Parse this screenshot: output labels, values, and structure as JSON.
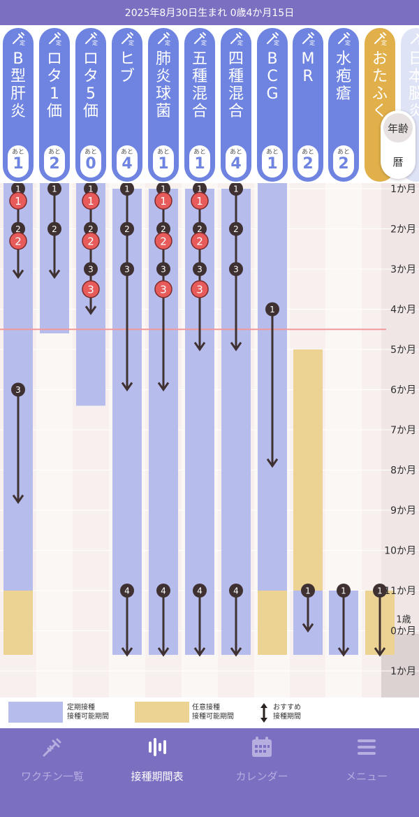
{
  "status_bar": {
    "text": "2025年8月30日生まれ 0歳4か月15日"
  },
  "vaccines": [
    {
      "name": "B型肝炎",
      "remaining_label": "あと",
      "remaining": "1",
      "kind": "regular"
    },
    {
      "name": "ロタ1価",
      "remaining_label": "あと",
      "remaining": "2",
      "kind": "regular"
    },
    {
      "name": "ロタ5価",
      "remaining_label": "あと",
      "remaining": "0",
      "kind": "regular"
    },
    {
      "name": "ヒブ",
      "remaining_label": "あと",
      "remaining": "4",
      "kind": "regular"
    },
    {
      "name": "肺炎球菌",
      "remaining_label": "あと",
      "remaining": "1",
      "kind": "regular"
    },
    {
      "name": "五種混合",
      "remaining_label": "あと",
      "remaining": "1",
      "kind": "regular"
    },
    {
      "name": "四種混合",
      "remaining_label": "あと",
      "remaining": "4",
      "kind": "regular"
    },
    {
      "name": "BCG",
      "remaining_label": "あと",
      "remaining": "1",
      "kind": "regular"
    },
    {
      "name": "MR",
      "remaining_label": "あと",
      "remaining": "2",
      "kind": "regular"
    },
    {
      "name": "水疱瘡",
      "remaining_label": "あと",
      "remaining": "2",
      "kind": "regular"
    },
    {
      "name": "おたふく",
      "remaining_label": "",
      "remaining": "",
      "kind": "optional"
    },
    {
      "name": "日本脳炎",
      "remaining_label": "",
      "remaining": "",
      "kind": "faded"
    }
  ],
  "view_toggle": {
    "age": "年齢",
    "calendar": "暦",
    "selected": "age"
  },
  "age_axis": [
    {
      "label": "1か月"
    },
    {
      "label": "2か月"
    },
    {
      "label": "3か月"
    },
    {
      "label": "4か月"
    },
    {
      "label": "5か月"
    },
    {
      "label": "6か月"
    },
    {
      "label": "7か月"
    },
    {
      "label": "8か月"
    },
    {
      "label": "9か月"
    },
    {
      "label": "10か月"
    },
    {
      "label": "11か月"
    },
    {
      "label": "0か月",
      "prefix": "1歳"
    },
    {
      "label": "1か月"
    }
  ],
  "current_age_months": 4.5,
  "schedule": [
    {
      "periods": [
        {
          "type": "regular",
          "from": 0,
          "to": 11
        },
        {
          "type": "optional",
          "from": 11,
          "to": 12.6
        }
      ],
      "arrows": [
        {
          "from": 1,
          "to": 3.2
        },
        {
          "from": 6,
          "to": 8.8
        }
      ],
      "doses": [
        {
          "n": "1",
          "at": 1,
          "done": false
        },
        {
          "n": "2",
          "at": 2,
          "done": false
        },
        {
          "n": "3",
          "at": 6,
          "done": false
        }
      ],
      "done_doses": [
        {
          "n": "1",
          "at": 1.3
        },
        {
          "n": "2",
          "at": 2.3
        }
      ]
    },
    {
      "periods": [
        {
          "type": "regular",
          "from": 0.45,
          "to": 4.6
        }
      ],
      "arrows": [
        {
          "from": 1,
          "to": 3.2
        }
      ],
      "doses": [
        {
          "n": "1",
          "at": 1,
          "done": false
        },
        {
          "n": "2",
          "at": 2,
          "done": false
        }
      ],
      "done_doses": []
    },
    {
      "periods": [
        {
          "type": "regular",
          "from": 0.45,
          "to": 6.4
        }
      ],
      "arrows": [
        {
          "from": 1,
          "to": 4.1
        }
      ],
      "doses": [
        {
          "n": "1",
          "at": 1,
          "done": false
        },
        {
          "n": "2",
          "at": 2,
          "done": false
        },
        {
          "n": "3",
          "at": 3,
          "done": false
        }
      ],
      "done_doses": [
        {
          "n": "1",
          "at": 1.3
        },
        {
          "n": "2",
          "at": 2.3
        },
        {
          "n": "3",
          "at": 3.5
        }
      ]
    },
    {
      "periods": [
        {
          "type": "regular",
          "from": 1,
          "to": 12.6
        }
      ],
      "arrows": [
        {
          "from": 1,
          "to": 6
        },
        {
          "from": 11,
          "to": 12.6
        }
      ],
      "doses": [
        {
          "n": "1",
          "at": 1,
          "done": false
        },
        {
          "n": "2",
          "at": 2,
          "done": false
        },
        {
          "n": "3",
          "at": 3,
          "done": false
        },
        {
          "n": "4",
          "at": 11,
          "done": false
        }
      ],
      "done_doses": []
    },
    {
      "periods": [
        {
          "type": "regular",
          "from": 1,
          "to": 12.6
        }
      ],
      "arrows": [
        {
          "from": 1,
          "to": 6
        },
        {
          "from": 11,
          "to": 12.6
        }
      ],
      "doses": [
        {
          "n": "1",
          "at": 1,
          "done": false
        },
        {
          "n": "2",
          "at": 2,
          "done": false
        },
        {
          "n": "3",
          "at": 3,
          "done": false
        },
        {
          "n": "4",
          "at": 11,
          "done": false
        }
      ],
      "done_doses": [
        {
          "n": "1",
          "at": 1.3
        },
        {
          "n": "2",
          "at": 2.3
        },
        {
          "n": "3",
          "at": 3.5
        }
      ]
    },
    {
      "periods": [
        {
          "type": "regular",
          "from": 1,
          "to": 12.6
        }
      ],
      "arrows": [
        {
          "from": 1,
          "to": 5
        },
        {
          "from": 11,
          "to": 12.6
        }
      ],
      "doses": [
        {
          "n": "1",
          "at": 1,
          "done": false
        },
        {
          "n": "2",
          "at": 2,
          "done": false
        },
        {
          "n": "3",
          "at": 3,
          "done": false
        },
        {
          "n": "4",
          "at": 11,
          "done": false
        }
      ],
      "done_doses": [
        {
          "n": "1",
          "at": 1.3
        },
        {
          "n": "2",
          "at": 2.3
        },
        {
          "n": "3",
          "at": 3.5
        }
      ]
    },
    {
      "periods": [
        {
          "type": "regular",
          "from": 1,
          "to": 12.6
        }
      ],
      "arrows": [
        {
          "from": 1,
          "to": 5
        },
        {
          "from": 11,
          "to": 12.6
        }
      ],
      "doses": [
        {
          "n": "1",
          "at": 1,
          "done": false
        },
        {
          "n": "2",
          "at": 2,
          "done": false
        },
        {
          "n": "3",
          "at": 3,
          "done": false
        },
        {
          "n": "4",
          "at": 11,
          "done": false
        }
      ],
      "done_doses": []
    },
    {
      "periods": [
        {
          "type": "regular",
          "from": 0,
          "to": 11
        },
        {
          "type": "optional",
          "from": 11,
          "to": 12.6
        }
      ],
      "arrows": [
        {
          "from": 4,
          "to": 7.9
        }
      ],
      "doses": [
        {
          "n": "1",
          "at": 4,
          "done": false
        }
      ],
      "done_doses": []
    },
    {
      "periods": [
        {
          "type": "optional",
          "from": 5,
          "to": 11
        },
        {
          "type": "regular",
          "from": 11,
          "to": 12.6
        }
      ],
      "arrows": [
        {
          "from": 11,
          "to": 12
        }
      ],
      "doses": [
        {
          "n": "1",
          "at": 11,
          "done": false
        }
      ],
      "done_doses": []
    },
    {
      "periods": [
        {
          "type": "regular",
          "from": 11,
          "to": 12.6
        }
      ],
      "arrows": [
        {
          "from": 11,
          "to": 12.6
        }
      ],
      "doses": [
        {
          "n": "1",
          "at": 11,
          "done": false
        }
      ],
      "done_doses": []
    },
    {
      "periods": [
        {
          "type": "optional",
          "from": 11,
          "to": 12.6
        }
      ],
      "arrows": [
        {
          "from": 11,
          "to": 12.6
        }
      ],
      "doses": [
        {
          "n": "1",
          "at": 11,
          "done": false
        }
      ],
      "done_doses": []
    }
  ],
  "legend": {
    "regular": "定期接種\n接種可能期間",
    "optional": "任意接種\n接種可能期間",
    "recommended": "おすすめ\n接種期間"
  },
  "colors": {
    "header_purple": "#7b6fc2",
    "regular": "#b6bcec",
    "optional": "#ecd393",
    "done_dose": "#e85b5b",
    "dose": "#3f3131",
    "now_line": "#f29a9a"
  },
  "bottom_nav": [
    {
      "label": "ワクチン一覧",
      "icon": "syringe-icon",
      "active": false
    },
    {
      "label": "接種期間表",
      "icon": "bars-chart-icon",
      "active": true
    },
    {
      "label": "カレンダー",
      "icon": "calendar-icon",
      "active": false
    },
    {
      "label": "メニュー",
      "icon": "menu-icon",
      "active": false
    }
  ]
}
